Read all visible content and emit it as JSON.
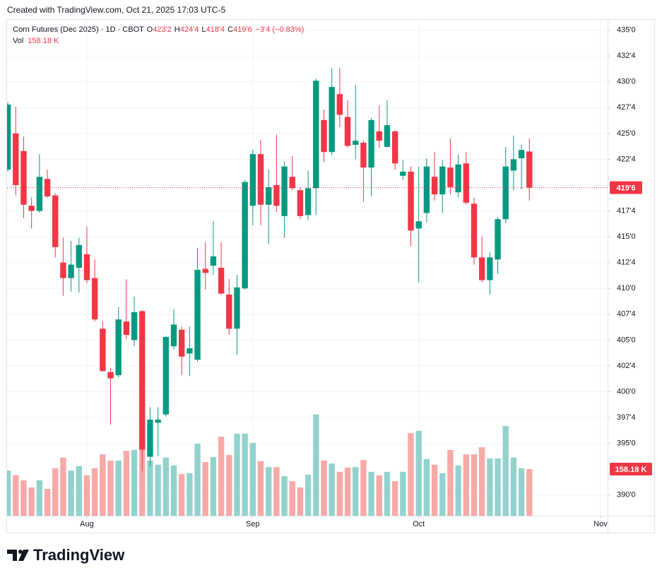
{
  "header": {
    "credit": "Created with TradingView.com, Oct 21, 2025 17:03 UTC-5"
  },
  "chart_data": {
    "type": "candlestick",
    "symbol": "Corn Futures (Dec 2025)",
    "interval": "1D",
    "exchange": "CBOT",
    "ohlc_legend": [
      {
        "key": "O",
        "value": 423.25,
        "label": "423'2"
      },
      {
        "key": "H",
        "value": 424.5,
        "label": "424'4"
      },
      {
        "key": "L",
        "value": 418.5,
        "label": "418'4"
      },
      {
        "key": "C",
        "value": 419.75,
        "label": "419'6"
      }
    ],
    "change_label": "−3'4 (−0.83%)",
    "volume_title": "Vol",
    "volume_last": {
      "value": 158.18,
      "label": "158.18 K"
    },
    "open": [
      421.5,
      425,
      423.3,
      418,
      417.5,
      420.6,
      419,
      412.5,
      411,
      412,
      413.3,
      411,
      406.1,
      401.9,
      401.6,
      406.8,
      405,
      407.8,
      393.7,
      397,
      397.8,
      404.4,
      406,
      403.7,
      403.1,
      411.9,
      412.2,
      412,
      409.4,
      406.1,
      410,
      418,
      423,
      418.1,
      420,
      417,
      420.8,
      419.5,
      417.1,
      419.7,
      426.3,
      423.2,
      428.8,
      426.6,
      423.9,
      424.1,
      421.7,
      425.2,
      423.7,
      425.2,
      420.9,
      421.3,
      415.8,
      417.3,
      420.8,
      419.1,
      421.7,
      419.3,
      422.1,
      418.2,
      413,
      410.8,
      412.8,
      416.7,
      421.4,
      422.6,
      423.25
    ],
    "high": [
      428,
      427.6,
      424.7,
      418.8,
      423,
      421.5,
      419.2,
      414.9,
      414.6,
      414.9,
      416,
      412.8,
      406.8,
      402.3,
      408.2,
      410.9,
      409.2,
      407.9,
      398.5,
      398.5,
      405.4,
      408,
      406.3,
      406.3,
      413.9,
      414.5,
      416.5,
      414.5,
      410.9,
      411.3,
      420.5,
      423.4,
      424.4,
      421.5,
      424.9,
      422.3,
      422.8,
      419.8,
      421.4,
      430.3,
      427.3,
      431.3,
      431.3,
      428.2,
      429.7,
      424.3,
      426.5,
      427.7,
      428.2,
      425.3,
      422.4,
      421.8,
      421.8,
      422.6,
      423.2,
      422.4,
      424.5,
      423,
      423.2,
      418.8,
      415,
      413.5,
      416.9,
      423.7,
      424.8,
      423.9,
      424.5
    ],
    "low": [
      421.3,
      419,
      416.8,
      415.8,
      417.3,
      418.8,
      413,
      409.3,
      409.7,
      409.6,
      410.5,
      406.8,
      401.9,
      396.8,
      401.4,
      405.1,
      404.4,
      392.3,
      392.8,
      393.8,
      397.6,
      404.1,
      401.6,
      401.5,
      402.9,
      409.9,
      411.3,
      409.4,
      405.5,
      403.6,
      409.9,
      416.1,
      416.1,
      414.3,
      417.4,
      414.9,
      419.5,
      416.7,
      416.6,
      417.1,
      422.2,
      422.9,
      425.6,
      423.6,
      422.5,
      418.4,
      418.9,
      423.6,
      423.6,
      421.5,
      420.5,
      414.1,
      410.6,
      416.4,
      418.5,
      417.3,
      419.1,
      418.8,
      418.1,
      412.3,
      410.6,
      409.4,
      411.4,
      416.3,
      419.5,
      419.6,
      418.5
    ],
    "close": [
      427.8,
      420,
      418.1,
      417.5,
      420.8,
      418.9,
      414,
      411,
      412.3,
      414.2,
      410.8,
      407,
      402,
      401.3,
      407,
      405.5,
      407.7,
      394.4,
      397.3,
      397.3,
      405.3,
      406.5,
      403.4,
      404.2,
      411.8,
      411.5,
      413.1,
      409.5,
      406.1,
      410.1,
      420.3,
      423,
      418.1,
      419.8,
      418,
      421.8,
      419.7,
      417,
      419.7,
      430.1,
      423.2,
      429.5,
      426.8,
      423.8,
      424.3,
      421.7,
      426.3,
      424.3,
      425.8,
      422.1,
      421.3,
      415.6,
      416.5,
      421.8,
      419.1,
      421.8,
      419.8,
      422,
      418.3,
      413,
      410.8,
      413,
      416.7,
      421.8,
      422.5,
      423.4,
      419.75
    ],
    "volume": [
      153,
      137,
      120,
      96,
      120,
      91,
      161,
      197,
      153,
      168,
      137,
      161,
      208,
      187,
      187,
      220,
      223,
      268,
      187,
      173,
      197,
      170,
      141,
      144,
      244,
      182,
      199,
      268,
      206,
      278,
      278,
      247,
      185,
      165,
      165,
      134,
      117,
      96,
      139,
      343,
      187,
      177,
      149,
      163,
      165,
      189,
      149,
      137,
      149,
      117,
      149,
      280,
      288,
      192,
      173,
      144,
      223,
      170,
      208,
      208,
      232,
      194,
      194,
      304,
      197,
      161,
      158.18
    ],
    "up_color": "#089981",
    "down_color": "#f23645",
    "volume_up_color": "#92d2cc",
    "volume_down_color": "#f7a9a7",
    "ylim": [
      388,
      436
    ],
    "yticks": [
      {
        "value": 435,
        "label": "435'0"
      },
      {
        "value": 432.5,
        "label": "432'4"
      },
      {
        "value": 430,
        "label": "430'0"
      },
      {
        "value": 427.5,
        "label": "427'4"
      },
      {
        "value": 425,
        "label": "425'0"
      },
      {
        "value": 422.5,
        "label": "422'4"
      },
      {
        "value": 420,
        "label": "420'0"
      },
      {
        "value": 417.5,
        "label": "417'4"
      },
      {
        "value": 415,
        "label": "415'0"
      },
      {
        "value": 412.5,
        "label": "412'4"
      },
      {
        "value": 410,
        "label": "410'0"
      },
      {
        "value": 407.5,
        "label": "407'4"
      },
      {
        "value": 405,
        "label": "405'0"
      },
      {
        "value": 402.5,
        "label": "402'4"
      },
      {
        "value": 400,
        "label": "400'0"
      },
      {
        "value": 397.5,
        "label": "397'4"
      },
      {
        "value": 395,
        "label": "395'0"
      },
      {
        "value": 390,
        "label": "390'0"
      }
    ],
    "xlim": [
      -0.1,
      75.9
    ],
    "xticks": [
      {
        "value": 10,
        "label": "Aug"
      },
      {
        "value": 31,
        "label": "Sep"
      },
      {
        "value": 52,
        "label": "Oct"
      },
      {
        "value": 75,
        "label": "Nov"
      }
    ],
    "volume_lim": [
      0,
      400
    ],
    "grid": true
  },
  "footer": {
    "brand": "TradingView"
  }
}
